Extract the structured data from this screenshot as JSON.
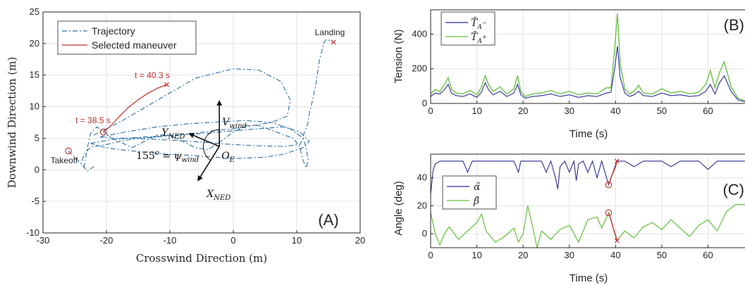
{
  "colors": {
    "trajectory": "#2a6fa6",
    "maneuver": "#c0302a",
    "tension_minus": "#2b2f91",
    "tension_plus": "#63bf3c",
    "alpha": "#2b2f91",
    "beta": "#63bf3c",
    "axis": "#262626",
    "grid": "#e3e3e3"
  },
  "chart_data": [
    {
      "id": "A",
      "type": "line",
      "panel_label": "(A)",
      "xlabel": "Crosswind Direction (m)",
      "ylabel": "Downwind Direction (m)",
      "xlim": [
        -30,
        20
      ],
      "ylim": [
        -10,
        25
      ],
      "xticks": [
        -30,
        -20,
        -10,
        0,
        10,
        20
      ],
      "yticks": [
        -10,
        -5,
        0,
        5,
        10,
        15,
        20,
        25
      ],
      "grid": true,
      "legend_position": "top-left",
      "series": [
        {
          "name": "Trajectory",
          "style": "dash-dot",
          "color_key": "trajectory",
          "x": [
            -26.0,
            -24.5,
            -23.5,
            -23,
            -22.5,
            -21.5,
            -19,
            -16,
            -14,
            -12,
            -10,
            -8,
            -6,
            -4,
            -2,
            0,
            2,
            4,
            6,
            8,
            9.5,
            10.5,
            11,
            11.5,
            11.8,
            11.5,
            11,
            11.2,
            11.5,
            11.8,
            12,
            12.5,
            13,
            13.3,
            13.6,
            14,
            14.3,
            14.6,
            15,
            15.2,
            15.5,
            15.8
          ],
          "y": [
            3.0,
            1.5,
            0.5,
            3.5,
            5.8,
            6.8,
            5.0,
            3.5,
            4.5,
            5.5,
            5.5,
            4.5,
            3.5,
            3.2,
            4.5,
            6.0,
            7.0,
            7.0,
            6.3,
            5.5,
            5.0,
            3.5,
            1.5,
            0.3,
            1.5,
            3.5,
            5.0,
            6.0,
            6.6,
            7.5,
            9.0,
            11.0,
            13.5,
            15.5,
            17.5,
            19.0,
            20.2,
            20.6,
            20.6,
            20.4,
            20.4,
            20.2
          ]
        },
        {
          "name": "Selected maneuver",
          "style": "solid",
          "color_key": "maneuver",
          "x": [
            -20.5,
            -19.5,
            -18,
            -16.5,
            -15,
            -13.5,
            -12,
            -10.5
          ],
          "y": [
            6.0,
            6.8,
            8.4,
            9.9,
            11.1,
            12.1,
            12.9,
            13.5
          ]
        }
      ],
      "loops": [
        {
          "x": [
            -22,
            -18,
            -12,
            -6,
            0,
            4,
            7.5,
            9,
            8.5,
            6,
            3,
            0,
            -3,
            -6,
            -9,
            -12,
            -15,
            -17.5,
            -20,
            -22.5,
            -23.5,
            -24,
            -23,
            -22
          ],
          "y": [
            5.5,
            7.5,
            11,
            14.5,
            16,
            15.8,
            14,
            11,
            8.5,
            7.5,
            7.0,
            6.5,
            6.2,
            5.8,
            5.5,
            5.2,
            5.0,
            4.6,
            4.0,
            3.6,
            2.5,
            1.0,
            -0.2,
            0.5
          ]
        },
        {
          "x": [
            -22.5,
            -19,
            -14,
            -9,
            -4,
            0,
            4,
            8,
            10.5,
            12,
            11,
            8,
            5,
            1,
            -3,
            -7,
            -11,
            -15,
            -18,
            -20.5,
            -22.5
          ],
          "y": [
            4.2,
            4.8,
            5.2,
            5.5,
            5.8,
            6.2,
            6.5,
            6.8,
            6.0,
            4.5,
            3.5,
            2.5,
            2.0,
            1.8,
            2.0,
            2.3,
            2.5,
            2.9,
            3.2,
            3.6,
            4.2
          ]
        },
        {
          "x": [
            -21,
            -17,
            -12,
            -7,
            -2,
            2,
            6,
            9,
            11,
            10.5,
            8,
            4,
            0,
            -4,
            -8,
            -12,
            -16,
            -19,
            -21
          ],
          "y": [
            5.2,
            6.0,
            6.8,
            7.3,
            7.6,
            7.8,
            7.5,
            6.5,
            5.0,
            4.0,
            3.7,
            3.8,
            4.0,
            4.3,
            4.6,
            4.8,
            5.0,
            5.0,
            5.2
          ]
        }
      ],
      "annotations": [
        {
          "text": "Takeoff",
          "x": -26,
          "y": 3.0,
          "marker": "circle"
        },
        {
          "text": "Landing",
          "x": 15.8,
          "y": 20.2,
          "marker": "x"
        },
        {
          "text": "t = 38.5 s",
          "x": -20.5,
          "y": 6.0,
          "marker": "circle"
        },
        {
          "text": "t = 40.3 s",
          "x": -10.5,
          "y": 13.5,
          "marker": "x"
        }
      ],
      "wind_diagram": {
        "origin_label": "O_E",
        "v_label": "V_wind",
        "x_label": "X_NED",
        "y_label": "Y_NED",
        "angle_label": "155° = ψ_wind"
      }
    },
    {
      "id": "B",
      "type": "line",
      "panel_label": "(B)",
      "xlabel": "Time (s)",
      "ylabel": "Tension (N)",
      "xlim": [
        0,
        68
      ],
      "ylim": [
        0,
        540
      ],
      "xticks": [
        0,
        10,
        20,
        30,
        40,
        50,
        60
      ],
      "yticks": [
        0,
        200,
        400
      ],
      "grid": true,
      "legend_position": "top-left",
      "series": [
        {
          "name": "T_A-",
          "color_key": "tension_minus",
          "x": [
            0,
            1,
            2,
            3,
            3.8,
            4.5,
            5.5,
            7,
            8.5,
            10,
            11,
            11.8,
            12.5,
            13.5,
            15,
            16.5,
            18,
            18.8,
            19.5,
            20.5,
            22,
            24,
            26,
            28,
            30,
            32,
            34,
            36,
            38,
            39,
            39.8,
            40.4,
            41,
            42,
            43,
            44,
            45,
            46,
            48,
            50,
            52,
            54,
            56,
            58,
            59.5,
            60.5,
            61.5,
            62.5,
            63.5,
            65,
            66.5,
            68
          ],
          "y": [
            40,
            60,
            55,
            80,
            110,
            60,
            45,
            40,
            55,
            35,
            65,
            120,
            80,
            50,
            70,
            40,
            60,
            110,
            50,
            30,
            40,
            45,
            55,
            40,
            50,
            35,
            45,
            40,
            60,
            65,
            200,
            330,
            150,
            60,
            40,
            50,
            70,
            45,
            40,
            60,
            45,
            50,
            40,
            45,
            70,
            110,
            55,
            120,
            160,
            70,
            20,
            10
          ]
        },
        {
          "name": "T_A+",
          "color_key": "tension_plus",
          "x": [
            0,
            1,
            2,
            3,
            3.8,
            4.5,
            5.5,
            7,
            8.5,
            10,
            11,
            11.8,
            12.5,
            13.5,
            15,
            16.5,
            18,
            18.8,
            19.5,
            20.5,
            22,
            24,
            26,
            28,
            30,
            32,
            34,
            36,
            38,
            39,
            39.8,
            40.4,
            41,
            42,
            43,
            44,
            45,
            46,
            48,
            50,
            52,
            54,
            56,
            58,
            59.5,
            60.5,
            61.5,
            62.5,
            63.5,
            65,
            66.5,
            68
          ],
          "y": [
            55,
            80,
            70,
            110,
            150,
            85,
            60,
            55,
            75,
            50,
            95,
            160,
            110,
            70,
            95,
            55,
            85,
            160,
            70,
            40,
            55,
            60,
            75,
            55,
            70,
            50,
            60,
            55,
            90,
            90,
            310,
            520,
            230,
            85,
            55,
            70,
            105,
            60,
            55,
            85,
            60,
            70,
            55,
            65,
            110,
            190,
            90,
            180,
            240,
            95,
            30,
            15
          ]
        }
      ]
    },
    {
      "id": "C",
      "type": "line",
      "panel_label": "(C)",
      "xlabel": "Time (s)",
      "ylabel": "Angle (deg)",
      "xlim": [
        0,
        68
      ],
      "ylim": [
        -10,
        57
      ],
      "xticks": [
        0,
        10,
        20,
        30,
        40,
        50,
        60
      ],
      "yticks": [
        0,
        20,
        40
      ],
      "grid": true,
      "legend_position": "center-left",
      "series": [
        {
          "name": "α̃",
          "color_key": "alpha",
          "x": [
            0,
            0.5,
            1,
            2,
            4,
            7,
            8,
            9,
            10,
            12,
            14,
            16,
            18,
            19,
            19.5,
            20,
            22,
            24,
            25,
            26,
            27,
            27.5,
            28,
            29,
            30,
            31,
            31.5,
            32,
            33,
            34,
            35,
            36,
            37,
            38.5,
            40.3,
            42,
            44,
            46,
            48,
            50,
            52,
            54,
            56,
            58,
            60,
            62,
            64,
            66,
            68
          ],
          "y": [
            28,
            45,
            50,
            52,
            52,
            52,
            44,
            52,
            52,
            52,
            52,
            52,
            52,
            44,
            52,
            52,
            52,
            52,
            44,
            52,
            40,
            32,
            48,
            52,
            44,
            52,
            38,
            50,
            52,
            44,
            52,
            40,
            52,
            35,
            52,
            52,
            48,
            52,
            52,
            52,
            48,
            52,
            52,
            52,
            46,
            52,
            52,
            52,
            52
          ]
        },
        {
          "name": "β̃",
          "color_key": "beta",
          "x": [
            0,
            1,
            2,
            3,
            4,
            6,
            8,
            10,
            11,
            12,
            14,
            16,
            18,
            19,
            20,
            21,
            22,
            23,
            24,
            26,
            28,
            30,
            32,
            34,
            36,
            37,
            38.5,
            40.3,
            42,
            44,
            46,
            48,
            50,
            52,
            54,
            56,
            58,
            60,
            62,
            64,
            66,
            68
          ],
          "y": [
            15,
            0,
            -8,
            0,
            5,
            -4,
            2,
            8,
            14,
            2,
            -6,
            -2,
            4,
            -6,
            0,
            20,
            6,
            -10,
            2,
            -4,
            3,
            6,
            -6,
            10,
            12,
            4,
            15,
            -5,
            2,
            -3,
            5,
            8,
            3,
            10,
            4,
            -2,
            6,
            10,
            2,
            16,
            21,
            21
          ]
        },
        {
          "name": "maneuver",
          "color_key": "maneuver",
          "x": [
            38.5,
            39,
            39.5,
            40,
            40.3
          ],
          "y": [
            35,
            40,
            44,
            48,
            52
          ]
        },
        {
          "name": "maneuver",
          "color_key": "maneuver",
          "x": [
            38.5,
            39,
            39.5,
            40,
            40.3
          ],
          "y": [
            15,
            10,
            4,
            -1,
            -5
          ]
        }
      ],
      "markers": [
        {
          "series": "alpha",
          "x": 38.5,
          "y": 35,
          "marker": "circle"
        },
        {
          "series": "alpha",
          "x": 40.3,
          "y": 52,
          "marker": "x"
        },
        {
          "series": "beta",
          "x": 38.5,
          "y": 15,
          "marker": "circle"
        },
        {
          "series": "beta",
          "x": 40.3,
          "y": -5,
          "marker": "x"
        }
      ]
    }
  ]
}
